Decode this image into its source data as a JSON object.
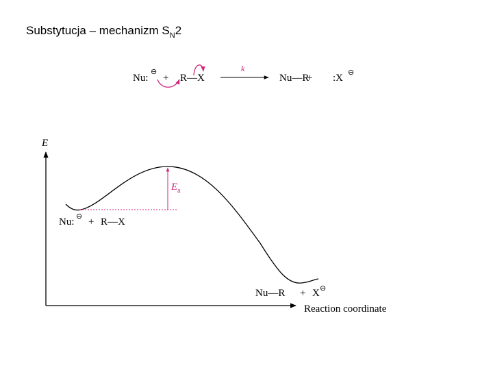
{
  "header": {
    "title": "Substytucja – mechanizm S",
    "title_subscript": "N",
    "title_end": "2"
  },
  "reaction": {
    "reactant_1": "Nu:",
    "charge_1": "⊖",
    "plus_1": "+",
    "reactant_2": "R—X",
    "rate_constant": "k",
    "product_1": "Nu—R",
    "plus_2": "+",
    "product_2": ":X",
    "charge_2": "⊖"
  },
  "diagram": {
    "y_axis_label": "E",
    "x_axis_label": "Reaction coordinate",
    "barrier_label": "E",
    "barrier_subscript": "a",
    "start_label": {
      "species_1": "Nu:",
      "charge_1": "⊖",
      "plus": "+",
      "species_2": "R—X"
    },
    "end_label": {
      "species_1": "Nu—R",
      "plus": "+",
      "species_2": "X",
      "charge_2": "⊖"
    }
  }
}
